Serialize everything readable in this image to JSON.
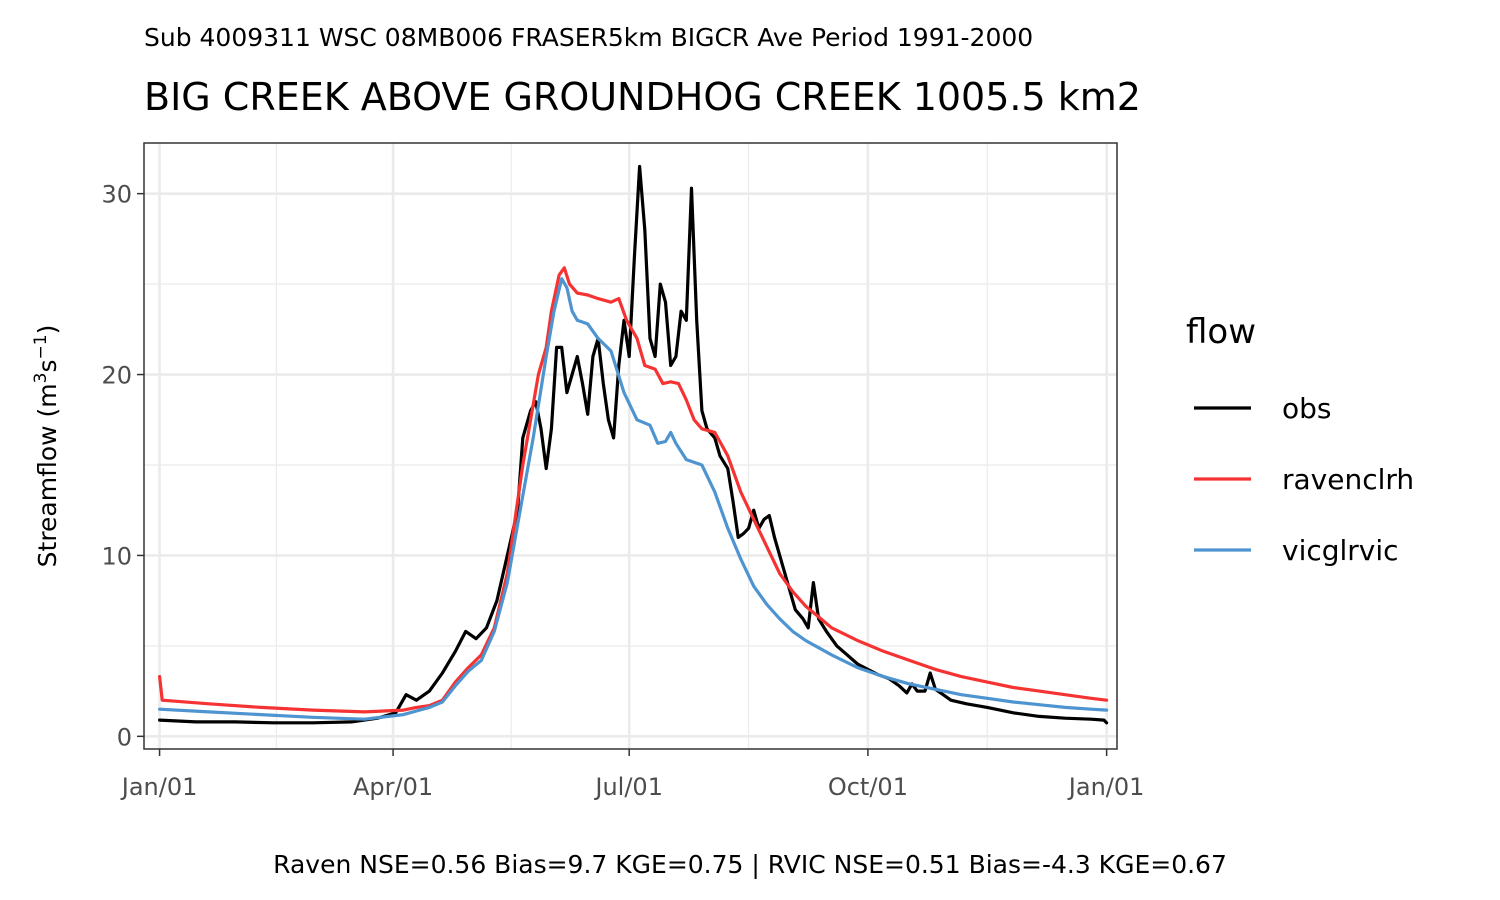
{
  "chart_data": {
    "type": "line",
    "subtitle": "Sub 4009311 WSC 08MB006 FRASER5km BIGCR Ave Period 1991-2000",
    "title": "BIG CREEK ABOVE GROUNDHOG CREEK 1005.5 km2",
    "ylabel": "Streamflow (m",
    "ylabel_sup1": "3",
    "ylabel_mid": "s",
    "ylabel_sup2": "−1",
    "ylabel_end": ")",
    "caption": "Raven NSE=0.56 Bias=9.7 KGE=0.75 | RVIC NSE=0.51 Bias=-4.3 KGE=0.67",
    "x_ticks": [
      {
        "label": "Jan/01",
        "day": 1
      },
      {
        "label": "Apr/01",
        "day": 91
      },
      {
        "label": "Jul/01",
        "day": 182
      },
      {
        "label": "Oct/01",
        "day": 274
      },
      {
        "label": "Jan/01",
        "day": 366
      }
    ],
    "xlim": [
      -5,
      370
    ],
    "y_ticks": [
      0,
      10,
      20,
      30
    ],
    "ylim": [
      -0.7,
      32.8
    ],
    "grid": true,
    "legend": {
      "title": "flow",
      "position": "right"
    },
    "series": [
      {
        "name": "obs",
        "color": "#000000",
        "points": [
          [
            1,
            0.9
          ],
          [
            15,
            0.8
          ],
          [
            30,
            0.8
          ],
          [
            45,
            0.75
          ],
          [
            60,
            0.75
          ],
          [
            75,
            0.8
          ],
          [
            85,
            1.0
          ],
          [
            92,
            1.3
          ],
          [
            96,
            2.3
          ],
          [
            100,
            2.0
          ],
          [
            105,
            2.5
          ],
          [
            110,
            3.5
          ],
          [
            115,
            4.7
          ],
          [
            119,
            5.8
          ],
          [
            123,
            5.4
          ],
          [
            127,
            6.0
          ],
          [
            131,
            7.5
          ],
          [
            135,
            10.0
          ],
          [
            139,
            12.5
          ],
          [
            141,
            16.5
          ],
          [
            144,
            18.0
          ],
          [
            146,
            18.5
          ],
          [
            148,
            17.0
          ],
          [
            150,
            14.8
          ],
          [
            152,
            17.0
          ],
          [
            154,
            21.5
          ],
          [
            156,
            21.5
          ],
          [
            158,
            19.0
          ],
          [
            160,
            20.0
          ],
          [
            162,
            21.0
          ],
          [
            164,
            19.5
          ],
          [
            166,
            17.8
          ],
          [
            168,
            21.0
          ],
          [
            170,
            22.0
          ],
          [
            172,
            19.5
          ],
          [
            174,
            17.5
          ],
          [
            176,
            16.5
          ],
          [
            178,
            20.5
          ],
          [
            180,
            23.0
          ],
          [
            182,
            21.0
          ],
          [
            184,
            26.5
          ],
          [
            186,
            31.5
          ],
          [
            188,
            28.0
          ],
          [
            190,
            22.0
          ],
          [
            192,
            21.0
          ],
          [
            194,
            25.0
          ],
          [
            196,
            24.0
          ],
          [
            198,
            20.5
          ],
          [
            200,
            21.0
          ],
          [
            202,
            23.5
          ],
          [
            204,
            23.0
          ],
          [
            206,
            30.3
          ],
          [
            208,
            23.0
          ],
          [
            210,
            18.0
          ],
          [
            212,
            17.0
          ],
          [
            215,
            16.5
          ],
          [
            217,
            15.5
          ],
          [
            220,
            14.8
          ],
          [
            222,
            13.0
          ],
          [
            224,
            11.0
          ],
          [
            226,
            11.2
          ],
          [
            228,
            11.5
          ],
          [
            230,
            12.5
          ],
          [
            232,
            11.5
          ],
          [
            234,
            12.0
          ],
          [
            236,
            12.2
          ],
          [
            238,
            11.0
          ],
          [
            240,
            10.0
          ],
          [
            243,
            8.5
          ],
          [
            246,
            7.0
          ],
          [
            249,
            6.5
          ],
          [
            251,
            6.0
          ],
          [
            253,
            8.5
          ],
          [
            255,
            6.5
          ],
          [
            258,
            5.8
          ],
          [
            262,
            5.0
          ],
          [
            266,
            4.5
          ],
          [
            270,
            4.0
          ],
          [
            274,
            3.7
          ],
          [
            278,
            3.4
          ],
          [
            282,
            3.2
          ],
          [
            286,
            2.8
          ],
          [
            289,
            2.4
          ],
          [
            291,
            2.9
          ],
          [
            293,
            2.5
          ],
          [
            296,
            2.5
          ],
          [
            298,
            3.5
          ],
          [
            300,
            2.6
          ],
          [
            303,
            2.3
          ],
          [
            306,
            2.0
          ],
          [
            312,
            1.8
          ],
          [
            320,
            1.6
          ],
          [
            330,
            1.3
          ],
          [
            340,
            1.1
          ],
          [
            350,
            1.0
          ],
          [
            360,
            0.95
          ],
          [
            365,
            0.9
          ],
          [
            366,
            0.75
          ]
        ]
      },
      {
        "name": "ravenclrh",
        "color": "#f63333",
        "points": [
          [
            1,
            3.3
          ],
          [
            2,
            2.0
          ],
          [
            20,
            1.8
          ],
          [
            40,
            1.6
          ],
          [
            60,
            1.45
          ],
          [
            80,
            1.35
          ],
          [
            95,
            1.45
          ],
          [
            100,
            1.6
          ],
          [
            105,
            1.7
          ],
          [
            110,
            2.0
          ],
          [
            115,
            3.0
          ],
          [
            120,
            3.8
          ],
          [
            125,
            4.5
          ],
          [
            130,
            6.0
          ],
          [
            135,
            9.0
          ],
          [
            138,
            12.0
          ],
          [
            141,
            15.0
          ],
          [
            144,
            17.5
          ],
          [
            147,
            20.0
          ],
          [
            150,
            21.5
          ],
          [
            152,
            23.5
          ],
          [
            155,
            25.5
          ],
          [
            157,
            25.9
          ],
          [
            159,
            25.0
          ],
          [
            162,
            24.5
          ],
          [
            166,
            24.4
          ],
          [
            170,
            24.2
          ],
          [
            175,
            24.0
          ],
          [
            178,
            24.2
          ],
          [
            181,
            23.0
          ],
          [
            185,
            22.0
          ],
          [
            188,
            20.5
          ],
          [
            192,
            20.3
          ],
          [
            195,
            19.5
          ],
          [
            198,
            19.6
          ],
          [
            201,
            19.5
          ],
          [
            204,
            18.6
          ],
          [
            207,
            17.5
          ],
          [
            210,
            17.0
          ],
          [
            215,
            16.8
          ],
          [
            220,
            15.5
          ],
          [
            225,
            13.5
          ],
          [
            230,
            12.0
          ],
          [
            235,
            10.5
          ],
          [
            240,
            9.0
          ],
          [
            245,
            8.0
          ],
          [
            250,
            7.2
          ],
          [
            255,
            6.6
          ],
          [
            260,
            6.0
          ],
          [
            270,
            5.3
          ],
          [
            280,
            4.7
          ],
          [
            290,
            4.2
          ],
          [
            300,
            3.7
          ],
          [
            310,
            3.3
          ],
          [
            320,
            3.0
          ],
          [
            330,
            2.7
          ],
          [
            340,
            2.5
          ],
          [
            350,
            2.3
          ],
          [
            360,
            2.1
          ],
          [
            366,
            2.0
          ]
        ]
      },
      {
        "name": "vicglrvic",
        "color": "#4e94d0",
        "points": [
          [
            1,
            1.5
          ],
          [
            20,
            1.35
          ],
          [
            40,
            1.2
          ],
          [
            60,
            1.05
          ],
          [
            80,
            0.95
          ],
          [
            95,
            1.2
          ],
          [
            100,
            1.4
          ],
          [
            105,
            1.6
          ],
          [
            110,
            1.9
          ],
          [
            115,
            2.8
          ],
          [
            120,
            3.6
          ],
          [
            125,
            4.2
          ],
          [
            130,
            5.8
          ],
          [
            135,
            8.5
          ],
          [
            140,
            12.5
          ],
          [
            145,
            16.5
          ],
          [
            150,
            21.0
          ],
          [
            153,
            23.5
          ],
          [
            156,
            25.3
          ],
          [
            158,
            24.8
          ],
          [
            160,
            23.5
          ],
          [
            162,
            23.0
          ],
          [
            166,
            22.8
          ],
          [
            170,
            22.0
          ],
          [
            175,
            21.3
          ],
          [
            180,
            19.0
          ],
          [
            185,
            17.5
          ],
          [
            190,
            17.2
          ],
          [
            193,
            16.2
          ],
          [
            196,
            16.3
          ],
          [
            198,
            16.8
          ],
          [
            200,
            16.2
          ],
          [
            204,
            15.3
          ],
          [
            210,
            15.0
          ],
          [
            215,
            13.5
          ],
          [
            220,
            11.5
          ],
          [
            225,
            9.8
          ],
          [
            230,
            8.3
          ],
          [
            235,
            7.3
          ],
          [
            240,
            6.5
          ],
          [
            245,
            5.8
          ],
          [
            250,
            5.3
          ],
          [
            255,
            4.9
          ],
          [
            260,
            4.5
          ],
          [
            270,
            3.8
          ],
          [
            280,
            3.3
          ],
          [
            290,
            2.9
          ],
          [
            300,
            2.6
          ],
          [
            310,
            2.3
          ],
          [
            320,
            2.1
          ],
          [
            330,
            1.9
          ],
          [
            340,
            1.75
          ],
          [
            350,
            1.6
          ],
          [
            360,
            1.5
          ],
          [
            366,
            1.45
          ]
        ]
      }
    ]
  }
}
